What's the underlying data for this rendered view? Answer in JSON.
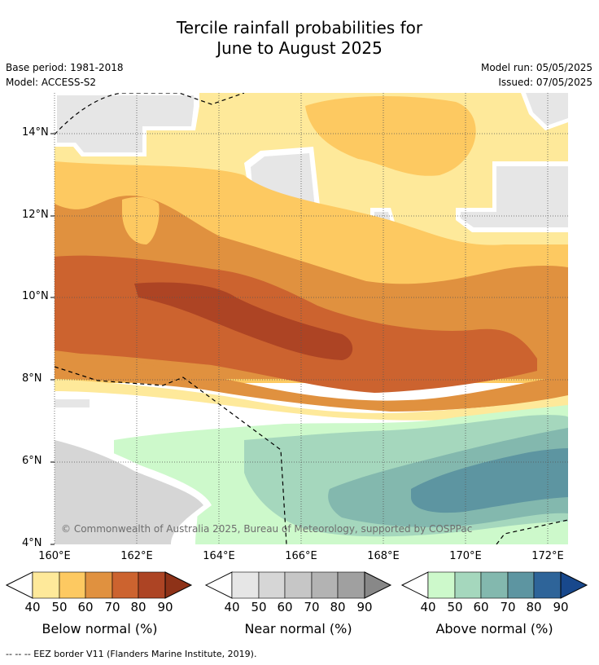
{
  "title": {
    "line1": "Tercile rainfall probabilities for",
    "line2": "June to August 2025"
  },
  "meta": {
    "base_period": "Base period: 1981-2018",
    "model": "Model: ACCESS-S2",
    "model_run": "Model run: 05/05/2025",
    "issued": "Issued: 07/05/2025"
  },
  "map": {
    "lat_labels": [
      "14°N",
      "12°N",
      "10°N",
      "8°N",
      "6°N",
      "4°N"
    ],
    "lon_labels": [
      "160°E",
      "162°E",
      "164°E",
      "166°E",
      "168°E",
      "170°E",
      "172°E"
    ],
    "copyright": "© Commonwealth of Australia 2025, Bureau of Meteorology, supported by COSPPac"
  },
  "legend": {
    "below": {
      "title": "Below normal (%)",
      "ticks": [
        "40",
        "50",
        "60",
        "70",
        "80",
        "90"
      ],
      "colors": [
        "#fee99a",
        "#fdc961",
        "#e0913f",
        "#cc632f",
        "#ad4424",
        "#8e3218"
      ]
    },
    "near": {
      "title": "Near normal (%)",
      "ticks": [
        "40",
        "50",
        "60",
        "70",
        "80",
        "90"
      ],
      "colors": [
        "#e6e6e6",
        "#d6d6d6",
        "#c6c6c6",
        "#b3b3b3",
        "#a0a0a0",
        "#888888"
      ]
    },
    "above": {
      "title": "Above normal (%)",
      "ticks": [
        "40",
        "50",
        "60",
        "70",
        "80",
        "90"
      ],
      "colors": [
        "#cdf9cb",
        "#a5d7bd",
        "#83b8ae",
        "#5d95a1",
        "#2e6499",
        "#18488c"
      ]
    }
  },
  "footer": "--  --  -- EEZ border V11 (Flanders Marine Institute, 2019)."
}
